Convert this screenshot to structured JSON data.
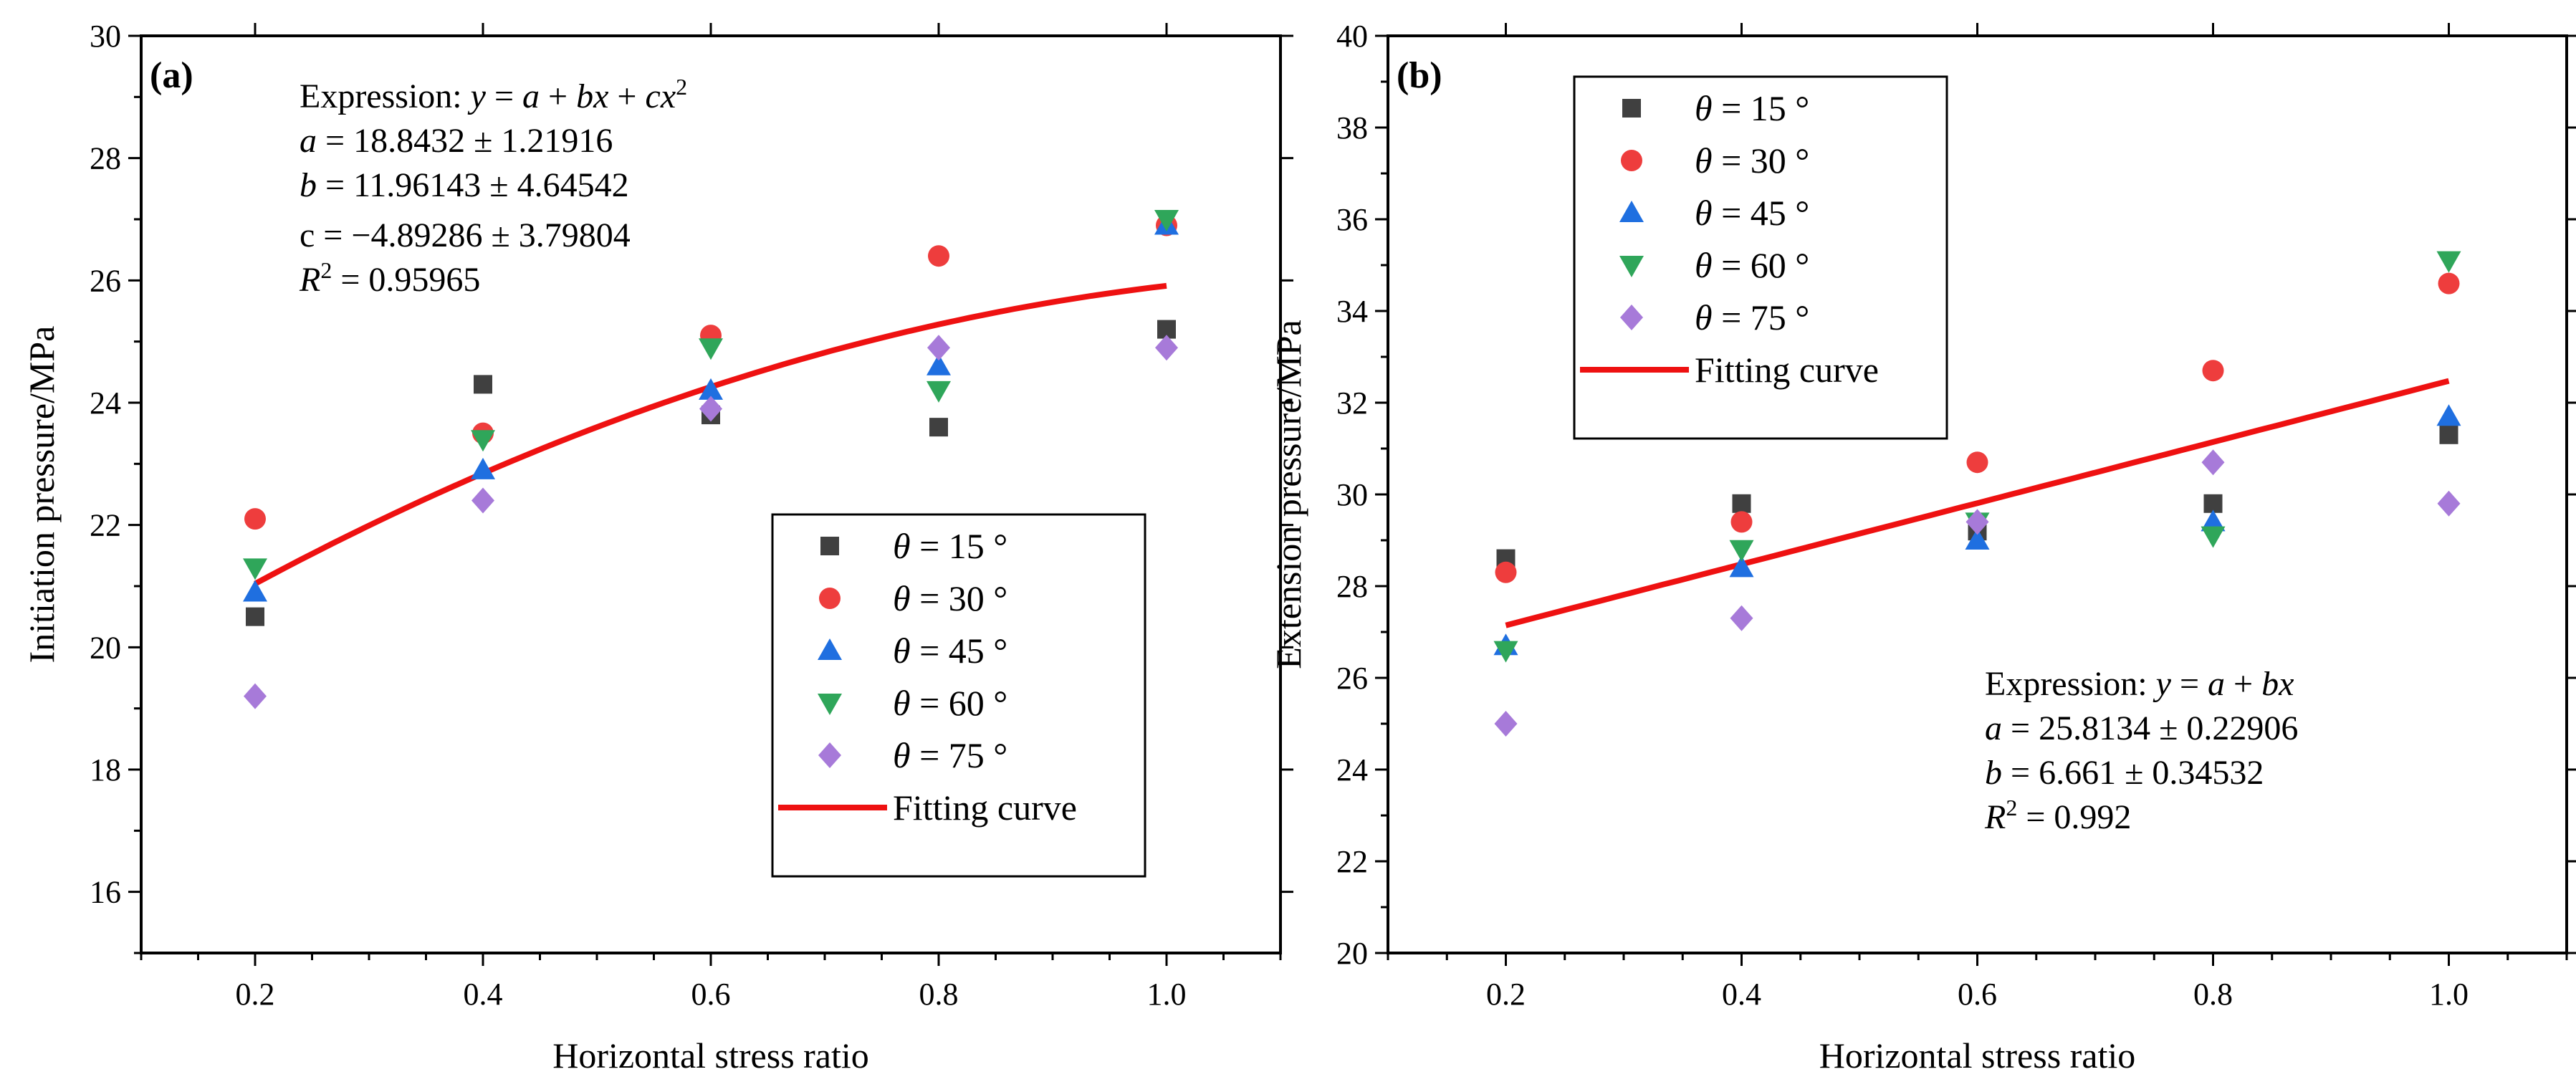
{
  "figure": {
    "series_names": [
      "θ = 15 °",
      "θ = 30 °",
      "θ = 45 °",
      "θ = 60 °",
      "θ = 75 °"
    ],
    "fit_label": "Fitting curve",
    "colors": {
      "s15": "#404040",
      "s30": "#ee3d3d",
      "s45": "#1f6fe0",
      "s60": "#2fa65a",
      "s75": "#a77ad9",
      "fit": "#ee1111"
    },
    "markers": [
      "square-icon",
      "circle-icon",
      "triangle-up-icon",
      "triangle-down-icon",
      "diamond-icon"
    ]
  },
  "chart_data": [
    {
      "type": "scatter",
      "panel_label": "(a)",
      "xlabel": "Horizontal stress ratio",
      "ylabel": "Initiation pressure/MPa",
      "xlim": [
        0.1,
        1.1
      ],
      "ylim": [
        15,
        30
      ],
      "x_ticks": [
        "0.2",
        "0.4",
        "0.6",
        "0.8",
        "1.0"
      ],
      "y_ticks": [
        "16",
        "18",
        "20",
        "22",
        "24",
        "26",
        "28",
        "30"
      ],
      "x": [
        0.2,
        0.4,
        0.6,
        0.8,
        1.0
      ],
      "series": [
        {
          "name": "θ = 15 °",
          "values": [
            20.5,
            24.3,
            23.8,
            23.6,
            25.2
          ]
        },
        {
          "name": "θ = 30 °",
          "values": [
            22.1,
            23.5,
            25.1,
            26.4,
            26.9
          ]
        },
        {
          "name": "θ = 45 °",
          "values": [
            20.9,
            22.9,
            24.2,
            24.6,
            26.9
          ]
        },
        {
          "name": "θ = 60 °",
          "values": [
            21.3,
            23.4,
            24.9,
            24.2,
            27.0
          ]
        },
        {
          "name": "θ = 75 °",
          "values": [
            19.2,
            22.4,
            23.9,
            24.9,
            24.9
          ]
        }
      ],
      "fit": {
        "type": "quadratic",
        "a": 18.8432,
        "b": 11.96143,
        "c": -4.89286,
        "x_range": [
          0.2,
          1.0
        ]
      },
      "annotation_lines": [
        "Expression: y = a + bx + cx²",
        "a = 18.8432 ± 1.21916",
        "b = 11.96143 ± 4.64542",
        "c = −4.89286 ± 3.79804",
        "R² = 0.95965"
      ],
      "legend_position": "lower-right"
    },
    {
      "type": "scatter",
      "panel_label": "(b)",
      "xlabel": "Horizontal stress ratio",
      "ylabel": "Extension pressure/MPa",
      "xlim": [
        0.1,
        1.1
      ],
      "ylim": [
        20,
        40
      ],
      "x_ticks": [
        "0.2",
        "0.4",
        "0.6",
        "0.8",
        "1.0"
      ],
      "y_ticks": [
        "20",
        "22",
        "24",
        "26",
        "28",
        "30",
        "32",
        "34",
        "36",
        "38",
        "40"
      ],
      "x": [
        0.2,
        0.4,
        0.6,
        0.8,
        1.0
      ],
      "series": [
        {
          "name": "θ = 15 °",
          "values": [
            28.6,
            29.8,
            29.2,
            29.8,
            31.3
          ]
        },
        {
          "name": "θ = 30 °",
          "values": [
            28.3,
            29.4,
            30.7,
            32.7,
            34.6
          ]
        },
        {
          "name": "θ = 45 °",
          "values": [
            26.7,
            28.4,
            29.0,
            29.4,
            31.7
          ]
        },
        {
          "name": "θ = 60 °",
          "values": [
            26.6,
            28.8,
            29.4,
            29.1,
            35.1
          ]
        },
        {
          "name": "θ = 75 °",
          "values": [
            25.0,
            27.3,
            29.4,
            30.7,
            29.8
          ]
        }
      ],
      "fit": {
        "type": "linear",
        "a": 25.8134,
        "b": 6.661,
        "x_range": [
          0.2,
          1.0
        ]
      },
      "annotation_lines": [
        "Expression: y = a + bx",
        "a = 25.8134 ± 0.22906",
        "b = 6.661 ± 0.34532",
        "R² = 0.992"
      ],
      "legend_position": "top-left"
    }
  ]
}
